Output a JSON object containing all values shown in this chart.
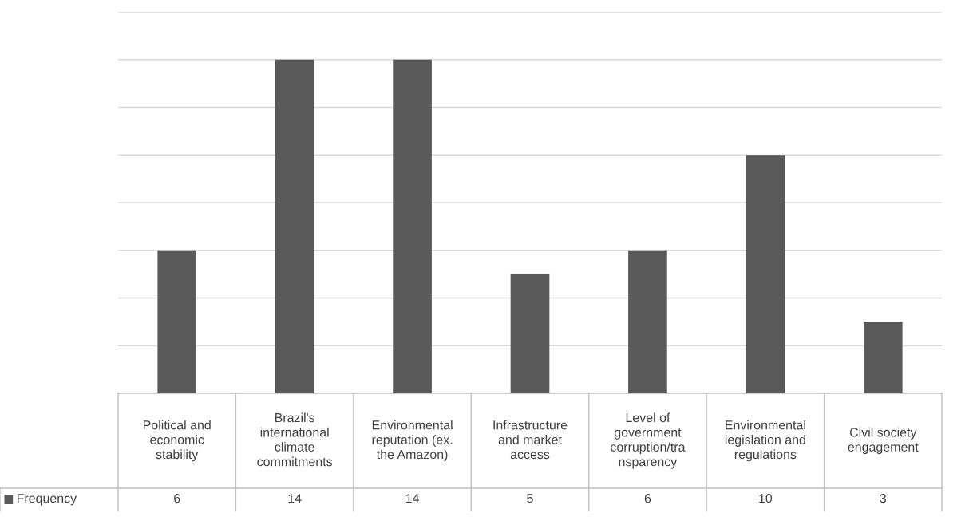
{
  "chart_data": {
    "type": "bar",
    "categories": [
      "Political and\neconomic\nstability",
      "Brazil's\ninternational\nclimate\ncommitments",
      "Environmental\nreputation (ex.\nthe Amazon)",
      "Infrastructure\nand market\naccess",
      "Level of\ngovernment\ncorruption/tra\nnsparency",
      "Environmental\nlegislation and\nregulations",
      "Civil society\nengagement"
    ],
    "series": [
      {
        "name": "Frequency",
        "color": "#595959",
        "values": [
          6,
          14,
          14,
          5,
          6,
          10,
          3
        ]
      }
    ],
    "ylim": [
      0,
      16
    ],
    "yticks": [
      {
        "value": 0,
        "label": null
      },
      {
        "value": 2,
        "label": null
      },
      {
        "value": 4,
        "label": null
      },
      {
        "value": 6,
        "label": null
      },
      {
        "value": 8,
        "label": null
      },
      {
        "value": 10,
        "label": null
      },
      {
        "value": 12,
        "label": null
      },
      {
        "value": 14,
        "label": null
      },
      {
        "value": 16,
        "label": null
      }
    ],
    "grid": "y",
    "data_labels": true
  }
}
